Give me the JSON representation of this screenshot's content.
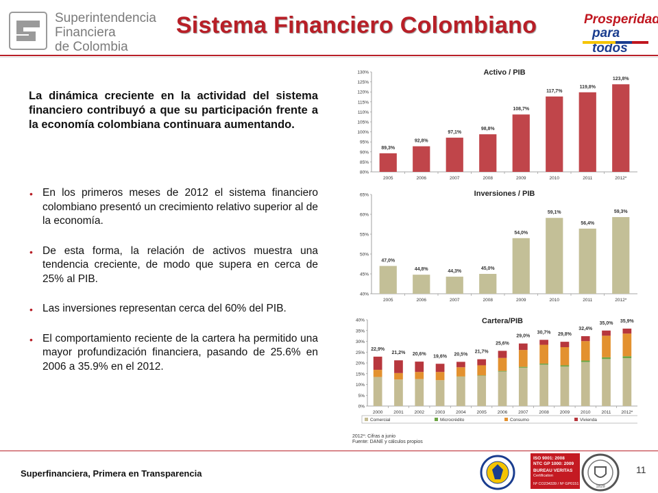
{
  "header": {
    "logo_lines": [
      "Superintendencia",
      "Financiera",
      "de Colombia"
    ],
    "title": "Sistema Financiero Colombiano",
    "brand_line1": "Prosperidad",
    "brand_line2": "para todos"
  },
  "body": {
    "lead": "La dinámica creciente en la actividad del sistema financiero contribuyó a que su participación frente a la economía colombiana continuara aumentando.",
    "bullets": [
      "En los primeros meses de 2012 el sistema financiero colombiano presentó un crecimiento relativo superior al de la economía.",
      "De esta forma, la relación de activos muestra una tendencia creciente, de modo que supera en cerca de 25% al PIB.",
      "Las inversiones representan cerca del 60% del PIB.",
      "El comportamiento reciente de la cartera ha permitido una mayor profundización financiera, pasando de 25.6% en 2006 a 35.9% en el 2012."
    ]
  },
  "colors": {
    "accent": "#b81f27",
    "bar_red": "#c0454a",
    "bar_olive": "#c3bf97",
    "comercial": "#c4bc93",
    "microcredito": "#6da545",
    "consumo": "#e3912f",
    "vivienda": "#b7373d"
  },
  "chart_data": [
    {
      "type": "bar",
      "title": "Activo / PIB",
      "categories": [
        "2005",
        "2006",
        "2007",
        "2008",
        "2009",
        "2010",
        "2011",
        "2012*"
      ],
      "values": [
        89.3,
        92.8,
        97.1,
        98.8,
        108.7,
        117.7,
        119.8,
        123.8
      ],
      "value_labels": [
        "89,3%",
        "92,8%",
        "97,1%",
        "98,8%",
        "108,7%",
        "117,7%",
        "119,8%",
        "123,8%"
      ],
      "ylim": [
        80,
        130
      ],
      "yticks": [
        "80%",
        "85%",
        "90%",
        "95%",
        "100%",
        "105%",
        "110%",
        "115%",
        "120%",
        "125%",
        "130%"
      ],
      "color": "#c0454a"
    },
    {
      "type": "bar",
      "title": "Inversiones / PIB",
      "categories": [
        "2005",
        "2006",
        "2007",
        "2008",
        "2009",
        "2010",
        "2011",
        "2012*"
      ],
      "values": [
        47.0,
        44.8,
        44.3,
        45.0,
        54.0,
        59.1,
        56.4,
        59.3
      ],
      "value_labels": [
        "47,0%",
        "44,8%",
        "44,3%",
        "45,0%",
        "54,0%",
        "59,1%",
        "56,4%",
        "59,3%"
      ],
      "ylim": [
        40,
        65
      ],
      "yticks": [
        "40%",
        "45%",
        "50%",
        "55%",
        "60%",
        "65%"
      ],
      "color": "#c3bf97"
    },
    {
      "type": "bar",
      "stacked": true,
      "title": "Cartera/PIB",
      "categories": [
        "2000",
        "2001",
        "2002",
        "2003",
        "2004",
        "2005",
        "2006",
        "2007",
        "2008",
        "2009",
        "2010",
        "2011",
        "2012*"
      ],
      "totals": [
        22.9,
        21.2,
        20.6,
        19.6,
        20.5,
        21.7,
        25.6,
        29.0,
        30.7,
        29.8,
        32.4,
        35.0,
        35.9
      ],
      "total_labels": [
        "22,9%",
        "21,2%",
        "20,6%",
        "19,6%",
        "20,5%",
        "21,7%",
        "25,6%",
        "29,0%",
        "30,7%",
        "29,8%",
        "32,4%",
        "35,0%",
        "35,9%"
      ],
      "series": [
        {
          "name": "Comercial",
          "values": [
            13.5,
            12.3,
            12.5,
            12.0,
            13.6,
            14.0,
            16.0,
            17.8,
            19.2,
            18.3,
            20.4,
            21.8,
            22.2
          ]
        },
        {
          "name": "Microcrédito",
          "values": [
            0.0,
            0.0,
            0.0,
            0.0,
            0.1,
            0.2,
            0.3,
            0.4,
            0.5,
            0.6,
            0.7,
            0.8,
            0.9
          ]
        },
        {
          "name": "Consumo",
          "values": [
            3.3,
            3.0,
            3.3,
            3.8,
            4.3,
            4.7,
            6.0,
            7.8,
            8.7,
            8.4,
            9.0,
            10.0,
            10.5
          ]
        },
        {
          "name": "Vivienda",
          "values": [
            6.1,
            5.9,
            4.8,
            3.8,
            2.5,
            2.8,
            3.3,
            3.0,
            2.3,
            2.5,
            2.3,
            2.4,
            2.3
          ]
        }
      ],
      "ylim": [
        0,
        40
      ],
      "yticks": [
        "0%",
        "5%",
        "10%",
        "15%",
        "20%",
        "25%",
        "30%",
        "35%",
        "40%"
      ],
      "legend": "bottom"
    }
  ],
  "notes": [
    "2012*: Cifras a junio",
    "Fuente: DANE y cálculos propios"
  ],
  "footer": {
    "text": "Superfinanciera, Primera en Transparencia",
    "page": "11",
    "cert_lines": [
      "ISO 9001: 2008",
      "NTC GP 1000: 2009",
      "BUREAU VERITAS",
      "Certification",
      "Nº CO234339 / Nº GP0151"
    ],
    "bv_year": "1828"
  }
}
